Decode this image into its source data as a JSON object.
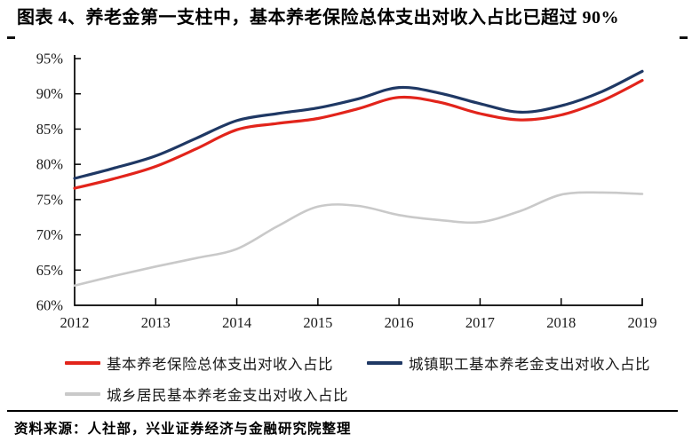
{
  "title": "图表 4、养老金第一支柱中，基本养老保险总体支出对收入占比已超过 90%",
  "source": {
    "label": "资料来源：",
    "text": "人社部，兴业证券经济与金融研究院整理"
  },
  "chart_data": {
    "type": "line",
    "title": "",
    "xlabel": "",
    "ylabel": "",
    "grid": false,
    "legend_position": "bottom",
    "unit": "percent",
    "xlim": [
      2012,
      2019
    ],
    "ylim": [
      60,
      95
    ],
    "y_tick_step": 5,
    "x_tick_labels": [
      "2012",
      "2013",
      "2014",
      "2015",
      "2016",
      "2017",
      "2018",
      "2019"
    ],
    "y_tick_labels": [
      "60%",
      "65%",
      "70%",
      "75%",
      "80%",
      "85%",
      "90%",
      "95%"
    ],
    "x": [
      2012,
      2012.5,
      2013,
      2013.5,
      2014,
      2014.5,
      2015,
      2015.5,
      2016,
      2016.5,
      2017,
      2017.5,
      2018,
      2018.5,
      2019
    ],
    "series": [
      {
        "name": "基本养老保险总体支出对收入占比",
        "color": "#e2241b",
        "line_width": 3.2,
        "values": [
          76.6,
          78.0,
          79.7,
          82.2,
          84.9,
          85.8,
          86.5,
          87.9,
          89.5,
          88.8,
          87.2,
          86.3,
          87.0,
          89.0,
          91.9
        ]
      },
      {
        "name": "城镇职工基本养老金支出对收入占比",
        "color": "#1f3864",
        "line_width": 3.2,
        "values": [
          78.0,
          79.5,
          81.2,
          83.7,
          86.2,
          87.2,
          88.0,
          89.3,
          90.9,
          90.1,
          88.6,
          87.4,
          88.3,
          90.3,
          93.2
        ]
      },
      {
        "name": "城乡居民基本养老金支出对收入占比",
        "color": "#c9c9c9",
        "line_width": 2.6,
        "values": [
          62.8,
          64.2,
          65.5,
          66.7,
          68.0,
          71.2,
          74.0,
          74.1,
          72.8,
          72.1,
          71.8,
          73.4,
          75.7,
          76.0,
          75.8
        ]
      }
    ],
    "annual_summary": {
      "years": [
        2012,
        2013,
        2014,
        2015,
        2016,
        2017,
        2018,
        2019
      ],
      "基本养老保险总体支出对收入占比": [
        76.6,
        79.7,
        84.9,
        86.5,
        89.5,
        87.2,
        87.0,
        91.9
      ],
      "城镇职工基本养老金支出对收入占比": [
        78.0,
        81.2,
        86.2,
        88.0,
        90.9,
        88.6,
        88.3,
        93.2
      ],
      "城乡居民基本养老金支出对收入占比": [
        62.8,
        65.5,
        68.0,
        74.0,
        72.8,
        71.8,
        75.7,
        75.8
      ]
    }
  }
}
